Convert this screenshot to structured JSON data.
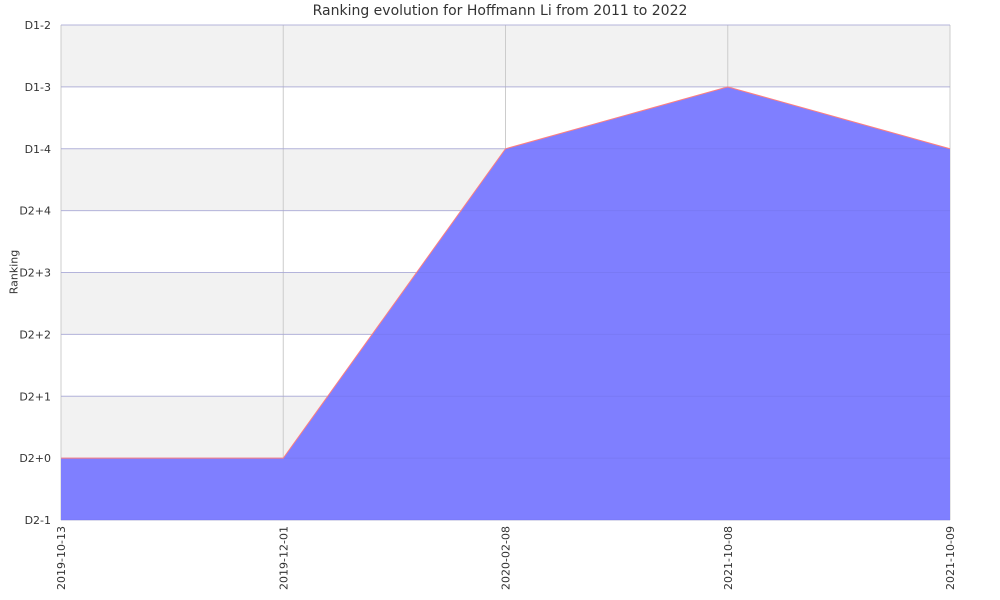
{
  "chart_data": {
    "type": "area",
    "title": "Ranking evolution for Hoffmann Li from 2011 to 2022",
    "xlabel": "",
    "ylabel": "Ranking",
    "x": [
      "2019-10-13",
      "2019-12-01",
      "2020-02-08",
      "2021-10-08",
      "2021-10-09"
    ],
    "y_categories": [
      "D2-1",
      "D2+0",
      "D2+1",
      "D2+2",
      "D2+3",
      "D2+4",
      "D1-4",
      "D1-3",
      "D1-2"
    ],
    "values": [
      "D2+0",
      "D2+0",
      "D1-4",
      "D1-3",
      "D1-4"
    ],
    "ylim": [
      "D2-1",
      "D1-2"
    ],
    "grid": true,
    "colors": {
      "fill": "#7f7fff",
      "line": "#ff7f7f",
      "band": "#f2f2f2",
      "grid": "#d9d9d9"
    }
  }
}
